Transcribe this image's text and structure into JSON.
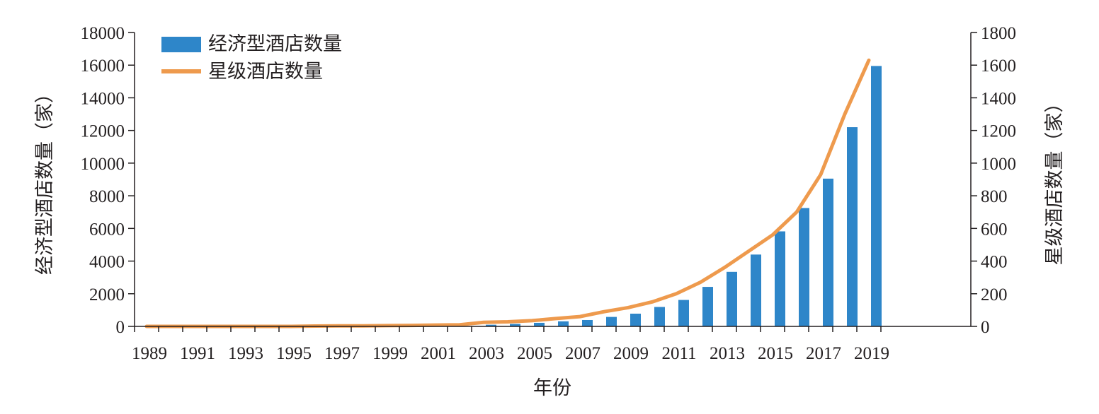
{
  "chart_data": {
    "type": "bar",
    "x": [
      1989,
      1990,
      1991,
      1992,
      1993,
      1994,
      1995,
      1996,
      1997,
      1998,
      1999,
      2000,
      2001,
      2002,
      2003,
      2004,
      2005,
      2006,
      2007,
      2008,
      2009,
      2010,
      2011,
      2012,
      2013,
      2014,
      2015,
      2016,
      2017,
      2018,
      2019
    ],
    "x_tick_labels": [
      "1989",
      "1991",
      "1993",
      "1995",
      "1997",
      "1999",
      "2001",
      "2003",
      "2005",
      "2007",
      "2009",
      "2011",
      "2013",
      "2015",
      "2017",
      "2019"
    ],
    "xlabel": "年份",
    "ylabel_left": "经济型酒店数量（家）",
    "ylabel_right": "星级酒店数量（家）",
    "ylim_left": [
      0,
      18000
    ],
    "ylim_right": [
      0,
      1800
    ],
    "y_ticks_left": [
      "0",
      "2000",
      "4000",
      "6000",
      "8000",
      "10000",
      "12000",
      "14000",
      "16000",
      "18000"
    ],
    "y_ticks_right": [
      "0",
      "200",
      "400",
      "600",
      "800",
      "1000",
      "1200",
      "1400",
      "1600",
      "1800"
    ],
    "grid": false,
    "legend_position": "top-left",
    "series": [
      {
        "name": "经济型酒店数量",
        "type": "bar",
        "axis": "left",
        "color": "#2e86c9",
        "values": [
          0,
          0,
          0,
          0,
          0,
          0,
          0,
          0,
          0,
          0,
          0,
          0,
          0,
          0,
          100,
          150,
          220,
          310,
          390,
          580,
          780,
          1190,
          1620,
          2420,
          3340,
          4400,
          5820,
          7250,
          9050,
          12200,
          15950
        ]
      },
      {
        "name": "星级酒店数量",
        "type": "line",
        "axis": "right",
        "color": "#ee9a4d",
        "values": [
          0,
          0,
          0,
          0,
          0,
          0,
          0,
          2,
          3,
          3,
          5,
          6,
          8,
          10,
          25,
          28,
          35,
          48,
          60,
          90,
          115,
          150,
          200,
          270,
          360,
          460,
          560,
          700,
          930,
          1300,
          1630
        ]
      }
    ]
  }
}
